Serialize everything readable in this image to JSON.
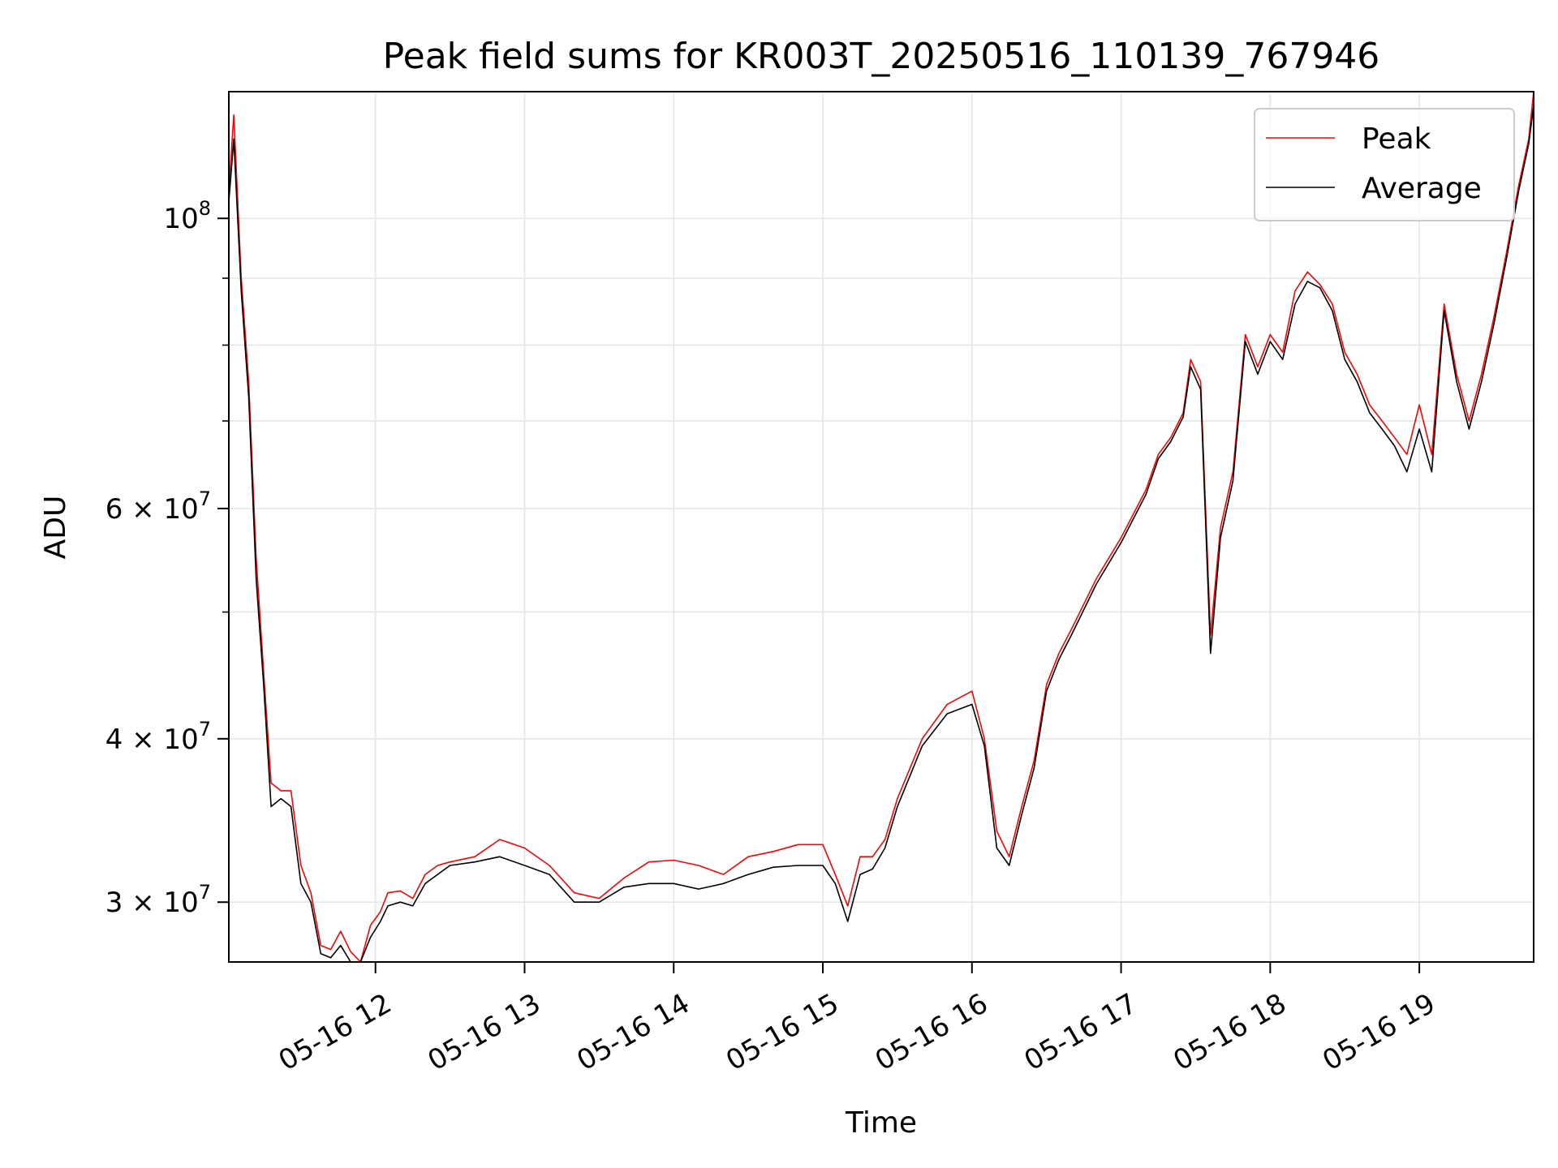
{
  "chart_data": {
    "type": "line",
    "title": "Peak field sums for KR003T_20250516_110139_767946",
    "xlabel": "Time",
    "ylabel": "ADU",
    "yscale": "log",
    "xlim": [
      "05-16 11:01",
      "05-16 19:46"
    ],
    "ylim": [
      27000000,
      125000000
    ],
    "grid": true,
    "legend_position": "top-right",
    "x_ticks": [
      "05-16 12",
      "05-16 13",
      "05-16 14",
      "05-16 15",
      "05-16 16",
      "05-16 17",
      "05-16 18",
      "05-16 19"
    ],
    "y_ticks": [
      {
        "value": 30000000,
        "label": "3 × 10⁷",
        "mantissa": "3",
        "exponent": "7"
      },
      {
        "value": 40000000,
        "label": "4 × 10⁷",
        "mantissa": "4",
        "exponent": "7"
      },
      {
        "value": 60000000,
        "label": "6 × 10⁷",
        "mantissa": "6",
        "exponent": "7"
      },
      {
        "value": 100000000,
        "label": "10⁸",
        "mantissa": "",
        "exponent": "8"
      }
    ],
    "x": [
      "05-16 11:01",
      "05-16 11:03",
      "05-16 11:06",
      "05-16 11:09",
      "05-16 11:12",
      "05-16 11:15",
      "05-16 11:18",
      "05-16 11:22",
      "05-16 11:26",
      "05-16 11:30",
      "05-16 11:34",
      "05-16 11:38",
      "05-16 11:42",
      "05-16 11:46",
      "05-16 11:50",
      "05-16 11:54",
      "05-16 11:58",
      "05-16 12:02",
      "05-16 12:05",
      "05-16 12:10",
      "05-16 12:15",
      "05-16 12:20",
      "05-16 12:25",
      "05-16 12:30",
      "05-16 12:40",
      "05-16 12:50",
      "05-16 13:00",
      "05-16 13:10",
      "05-16 13:20",
      "05-16 13:30",
      "05-16 13:40",
      "05-16 13:50",
      "05-16 14:00",
      "05-16 14:10",
      "05-16 14:20",
      "05-16 14:30",
      "05-16 14:40",
      "05-16 14:50",
      "05-16 15:00",
      "05-16 15:05",
      "05-16 15:10",
      "05-16 15:15",
      "05-16 15:20",
      "05-16 15:25",
      "05-16 15:30",
      "05-16 15:40",
      "05-16 15:50",
      "05-16 16:00",
      "05-16 16:05",
      "05-16 16:10",
      "05-16 16:15",
      "05-16 16:20",
      "05-16 16:25",
      "05-16 16:30",
      "05-16 16:35",
      "05-16 16:40",
      "05-16 16:50",
      "05-16 17:00",
      "05-16 17:10",
      "05-16 17:15",
      "05-16 17:20",
      "05-16 17:25",
      "05-16 17:28",
      "05-16 17:32",
      "05-16 17:36",
      "05-16 17:40",
      "05-16 17:45",
      "05-16 17:50",
      "05-16 17:55",
      "05-16 18:00",
      "05-16 18:05",
      "05-16 18:10",
      "05-16 18:15",
      "05-16 18:20",
      "05-16 18:25",
      "05-16 18:30",
      "05-16 18:35",
      "05-16 18:40",
      "05-16 18:45",
      "05-16 18:50",
      "05-16 18:55",
      "05-16 19:00",
      "05-16 19:05",
      "05-16 19:10",
      "05-16 19:15",
      "05-16 19:20",
      "05-16 19:25",
      "05-16 19:30",
      "05-16 19:35",
      "05-16 19:40",
      "05-16 19:44",
      "05-16 19:46"
    ],
    "series": [
      {
        "name": "Peak",
        "color": "#ff0000",
        "values": [
          105000000,
          120000000,
          90000000,
          75000000,
          55000000,
          45000000,
          37000000,
          36500000,
          36500000,
          32000000,
          30500000,
          27800000,
          27600000,
          28500000,
          27500000,
          27000000,
          28800000,
          29500000,
          30500000,
          30600000,
          30200000,
          31500000,
          32000000,
          32200000,
          32500000,
          33500000,
          33000000,
          32000000,
          30500000,
          30200000,
          31300000,
          32200000,
          32300000,
          32000000,
          31500000,
          32500000,
          32800000,
          33200000,
          33200000,
          31500000,
          29800000,
          32500000,
          32500000,
          33500000,
          36000000,
          40000000,
          42500000,
          43500000,
          40000000,
          34000000,
          32500000,
          35500000,
          38500000,
          44000000,
          46500000,
          48500000,
          53000000,
          57000000,
          62000000,
          66000000,
          68000000,
          71000000,
          78000000,
          75000000,
          48000000,
          58000000,
          64000000,
          81500000,
          77000000,
          81500000,
          79000000,
          88000000,
          91000000,
          89000000,
          86000000,
          79000000,
          76000000,
          72000000,
          70000000,
          68000000,
          66000000,
          72000000,
          66000000,
          86000000,
          76000000,
          70000000,
          76000000,
          84000000,
          94000000,
          106000000,
          115000000,
          125000000
        ]
      },
      {
        "name": "Average",
        "color": "#000000",
        "values": [
          103000000,
          115000000,
          88000000,
          73000000,
          53000000,
          44000000,
          35500000,
          36000000,
          35500000,
          31000000,
          30000000,
          27400000,
          27200000,
          27800000,
          27000000,
          26800000,
          28200000,
          29000000,
          29800000,
          30000000,
          29800000,
          31000000,
          31500000,
          32000000,
          32200000,
          32500000,
          32000000,
          31500000,
          30000000,
          30000000,
          30800000,
          31000000,
          31000000,
          30700000,
          31000000,
          31500000,
          31900000,
          32000000,
          32000000,
          31000000,
          29000000,
          31500000,
          31800000,
          33000000,
          35500000,
          39500000,
          41800000,
          42500000,
          39500000,
          33000000,
          32000000,
          35000000,
          38000000,
          43500000,
          46000000,
          48000000,
          52500000,
          56500000,
          61500000,
          65500000,
          67500000,
          70500000,
          77000000,
          74000000,
          46500000,
          57000000,
          63000000,
          80500000,
          76000000,
          80500000,
          78000000,
          86000000,
          89500000,
          88500000,
          85000000,
          78000000,
          75000000,
          71000000,
          69000000,
          67000000,
          64000000,
          69000000,
          64000000,
          85000000,
          75000000,
          69000000,
          75000000,
          83000000,
          93000000,
          105000000,
          114000000,
          122000000
        ]
      }
    ]
  }
}
